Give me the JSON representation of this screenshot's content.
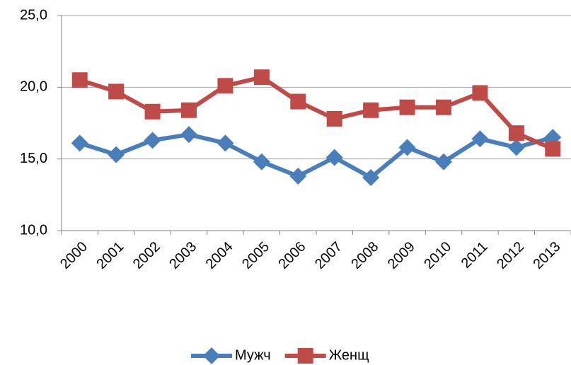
{
  "chart_data": {
    "type": "line",
    "categories": [
      "2000",
      "2001",
      "2002",
      "2003",
      "2004",
      "2005",
      "2006",
      "2007",
      "2008",
      "2009",
      "2010",
      "2011",
      "2012",
      "2013"
    ],
    "series": [
      {
        "name": "Мужч",
        "color": "#4a7ebb",
        "marker": "diamond",
        "values": [
          16.1,
          15.3,
          16.3,
          16.7,
          16.1,
          14.8,
          13.8,
          15.1,
          13.7,
          15.8,
          14.8,
          16.4,
          15.8,
          16.5
        ]
      },
      {
        "name": "Женщ",
        "color": "#be4b48",
        "marker": "square",
        "values": [
          20.5,
          19.7,
          18.3,
          18.4,
          20.1,
          20.7,
          19.0,
          17.8,
          18.4,
          18.6,
          18.6,
          19.6,
          16.8,
          15.7
        ]
      }
    ],
    "ylim": [
      10,
      25
    ],
    "yticks": [
      {
        "value": 10,
        "label": "10,0"
      },
      {
        "value": 15,
        "label": "15,0"
      },
      {
        "value": 20,
        "label": "20,0"
      },
      {
        "value": 25,
        "label": "25,0"
      }
    ],
    "grid": true,
    "legend": "bottom"
  }
}
